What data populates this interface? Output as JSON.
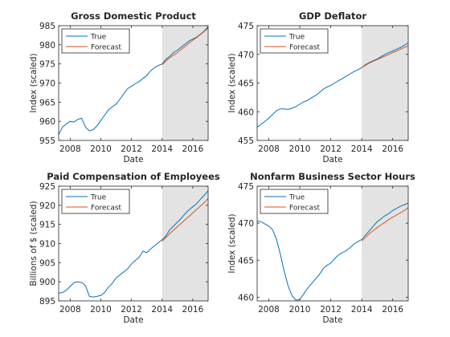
{
  "colors": {
    "true": "#0072BD",
    "forecast": "#D95319",
    "shade": "#e3e3e3",
    "axis": "#262626"
  },
  "chart_data": [
    {
      "type": "line",
      "title": "Gross Domestic Product",
      "xlabel": "Date",
      "ylabel": "Index (scaled)",
      "xlim": [
        2007.25,
        2017.0
      ],
      "ylim": [
        955,
        985
      ],
      "xticks": [
        "2008",
        "2010",
        "2012",
        "2014",
        "2016"
      ],
      "yticks": [
        "955",
        "960",
        "965",
        "970",
        "975",
        "980",
        "985"
      ],
      "forecast_start": 2014.0,
      "legend": {
        "placement": "top-left",
        "entries": [
          "True",
          "Forecast"
        ]
      },
      "series": [
        {
          "name": "True",
          "x": [
            2007.25,
            2007.5,
            2007.75,
            2008,
            2008.25,
            2008.5,
            2008.75,
            2009,
            2009.25,
            2009.5,
            2009.75,
            2010,
            2010.25,
            2010.5,
            2010.75,
            2011,
            2011.25,
            2011.5,
            2011.75,
            2012,
            2012.25,
            2012.5,
            2012.75,
            2013,
            2013.25,
            2013.5,
            2013.75,
            2014,
            2014.25,
            2014.5,
            2014.75,
            2015,
            2015.25,
            2015.5,
            2015.75,
            2016,
            2016.25,
            2016.5,
            2016.75,
            2017
          ],
          "y": [
            956.5,
            958.5,
            959.3,
            960.0,
            959.8,
            960.5,
            960.8,
            958.5,
            957.5,
            957.8,
            958.8,
            960.2,
            961.6,
            963.0,
            963.8,
            964.5,
            965.8,
            967.2,
            968.5,
            969.2,
            969.8,
            970.4,
            971.2,
            972.0,
            973.2,
            974.0,
            974.6,
            975.0,
            976.2,
            977.0,
            978.0,
            978.6,
            979.4,
            980.2,
            981.0,
            981.5,
            982.0,
            982.8,
            983.6,
            984.8
          ]
        },
        {
          "name": "Forecast",
          "x": [
            2014,
            2014.25,
            2014.5,
            2014.75,
            2015,
            2015.25,
            2015.5,
            2015.75,
            2016,
            2016.25,
            2016.5,
            2016.75,
            2017
          ],
          "y": [
            974.8,
            975.8,
            976.6,
            977.3,
            978.0,
            978.8,
            979.6,
            980.4,
            981.2,
            981.9,
            982.7,
            983.5,
            984.4
          ]
        }
      ]
    },
    {
      "type": "line",
      "title": "GDP Deflator",
      "xlabel": "Date",
      "ylabel": "Index (scaled)",
      "xlim": [
        2007.25,
        2017.0
      ],
      "ylim": [
        455,
        475
      ],
      "xticks": [
        "2008",
        "2010",
        "2012",
        "2014",
        "2016"
      ],
      "yticks": [
        "455",
        "460",
        "465",
        "470",
        "475"
      ],
      "forecast_start": 2014.0,
      "legend": {
        "placement": "top-left",
        "entries": [
          "True",
          "Forecast"
        ]
      },
      "series": [
        {
          "name": "True",
          "x": [
            2007.25,
            2007.5,
            2007.75,
            2008,
            2008.25,
            2008.5,
            2008.75,
            2009,
            2009.25,
            2009.5,
            2009.75,
            2010,
            2010.25,
            2010.5,
            2010.75,
            2011,
            2011.25,
            2011.5,
            2011.75,
            2012,
            2012.25,
            2012.5,
            2012.75,
            2013,
            2013.25,
            2013.5,
            2013.75,
            2014,
            2014.25,
            2014.5,
            2014.75,
            2015,
            2015.25,
            2015.5,
            2015.75,
            2016,
            2016.25,
            2016.5,
            2016.75,
            2017
          ],
          "y": [
            457.3,
            457.8,
            458.3,
            458.9,
            459.5,
            460.2,
            460.5,
            460.5,
            460.4,
            460.6,
            460.9,
            461.3,
            461.7,
            462.0,
            462.4,
            462.8,
            463.3,
            463.9,
            464.3,
            464.6,
            465.0,
            465.4,
            465.8,
            466.2,
            466.6,
            467.0,
            467.3,
            467.7,
            468.2,
            468.6,
            468.9,
            469.2,
            469.6,
            470.0,
            470.3,
            470.6,
            470.9,
            471.2,
            471.6,
            472.0
          ]
        },
        {
          "name": "Forecast",
          "x": [
            2014,
            2014.25,
            2014.5,
            2014.75,
            2015,
            2015.25,
            2015.5,
            2015.75,
            2016,
            2016.25,
            2016.5,
            2016.75,
            2017
          ],
          "y": [
            467.7,
            468.1,
            468.5,
            468.8,
            469.1,
            469.4,
            469.7,
            470.0,
            470.3,
            470.6,
            470.9,
            471.2,
            471.5
          ]
        }
      ]
    },
    {
      "type": "line",
      "title": "Paid Compensation of Employees",
      "xlabel": "Date",
      "ylabel": "Billions of $ (scaled)",
      "xlim": [
        2007.25,
        2017.0
      ],
      "ylim": [
        895,
        925
      ],
      "xticks": [
        "2008",
        "2010",
        "2012",
        "2014",
        "2016"
      ],
      "yticks": [
        "895",
        "900",
        "905",
        "910",
        "915",
        "920",
        "925"
      ],
      "forecast_start": 2014.0,
      "legend": {
        "placement": "top-left",
        "entries": [
          "True",
          "Forecast"
        ]
      },
      "series": [
        {
          "name": "True",
          "x": [
            2007.25,
            2007.5,
            2007.75,
            2008,
            2008.25,
            2008.5,
            2008.75,
            2009,
            2009.25,
            2009.5,
            2009.75,
            2010,
            2010.25,
            2010.5,
            2010.75,
            2011,
            2011.25,
            2011.5,
            2011.75,
            2012,
            2012.25,
            2012.5,
            2012.75,
            2013,
            2013.25,
            2013.5,
            2013.75,
            2014,
            2014.25,
            2014.5,
            2014.75,
            2015,
            2015.25,
            2015.5,
            2015.75,
            2016,
            2016.25,
            2016.5,
            2016.75,
            2017
          ],
          "y": [
            897.0,
            897.2,
            897.8,
            898.8,
            899.8,
            900.0,
            899.8,
            899.0,
            896.2,
            896.0,
            896.2,
            896.4,
            897.2,
            898.6,
            899.6,
            901.0,
            901.8,
            902.6,
            903.4,
            904.6,
            905.6,
            906.4,
            908.0,
            907.6,
            908.6,
            909.4,
            910.2,
            911.0,
            912.0,
            913.6,
            914.6,
            915.6,
            916.6,
            917.8,
            918.8,
            919.6,
            920.4,
            921.6,
            922.6,
            923.8
          ]
        },
        {
          "name": "Forecast",
          "x": [
            2014,
            2014.25,
            2014.5,
            2014.75,
            2015,
            2015.25,
            2015.5,
            2015.75,
            2016,
            2016.25,
            2016.5,
            2016.75,
            2017
          ],
          "y": [
            910.6,
            911.6,
            912.6,
            913.5,
            914.4,
            915.3,
            916.2,
            917.1,
            918.0,
            918.9,
            919.8,
            920.7,
            921.8
          ]
        }
      ]
    },
    {
      "type": "line",
      "title": "Nonfarm Business Sector Hours",
      "xlabel": "Date",
      "ylabel": "Index (scaled)",
      "xlim": [
        2007.25,
        2017.0
      ],
      "ylim": [
        459.5,
        475
      ],
      "xticks": [
        "2008",
        "2010",
        "2012",
        "2014",
        "2016"
      ],
      "yticks": [
        "460",
        "465",
        "470",
        "475"
      ],
      "forecast_start": 2014.0,
      "legend": {
        "placement": "top-left",
        "entries": [
          "True",
          "Forecast"
        ]
      },
      "series": [
        {
          "name": "True",
          "x": [
            2007.25,
            2007.5,
            2007.75,
            2008,
            2008.25,
            2008.5,
            2008.75,
            2009,
            2009.25,
            2009.5,
            2009.75,
            2010,
            2010.25,
            2010.5,
            2010.75,
            2011,
            2011.25,
            2011.5,
            2011.75,
            2012,
            2012.25,
            2012.5,
            2012.75,
            2013,
            2013.25,
            2013.5,
            2013.75,
            2014,
            2014.25,
            2014.5,
            2014.75,
            2015,
            2015.25,
            2015.5,
            2015.75,
            2016,
            2016.25,
            2016.5,
            2016.75,
            2017
          ],
          "y": [
            470.3,
            470.2,
            469.9,
            469.6,
            469.1,
            467.8,
            465.8,
            463.5,
            461.5,
            460.2,
            459.6,
            459.7,
            460.4,
            461.2,
            461.8,
            462.4,
            463.0,
            463.8,
            464.3,
            464.6,
            465.2,
            465.7,
            466.0,
            466.3,
            466.7,
            467.2,
            467.5,
            467.8,
            468.4,
            469.0,
            469.6,
            470.2,
            470.6,
            471.0,
            471.3,
            471.7,
            472.0,
            472.3,
            472.5,
            472.7
          ]
        },
        {
          "name": "Forecast",
          "x": [
            2014,
            2014.25,
            2014.5,
            2014.75,
            2015,
            2015.25,
            2015.5,
            2015.75,
            2016,
            2016.25,
            2016.5,
            2016.75,
            2017
          ],
          "y": [
            467.6,
            468.1,
            468.6,
            469.0,
            469.4,
            469.8,
            470.1,
            470.5,
            470.8,
            471.1,
            471.4,
            471.7,
            472.1
          ]
        }
      ]
    }
  ]
}
